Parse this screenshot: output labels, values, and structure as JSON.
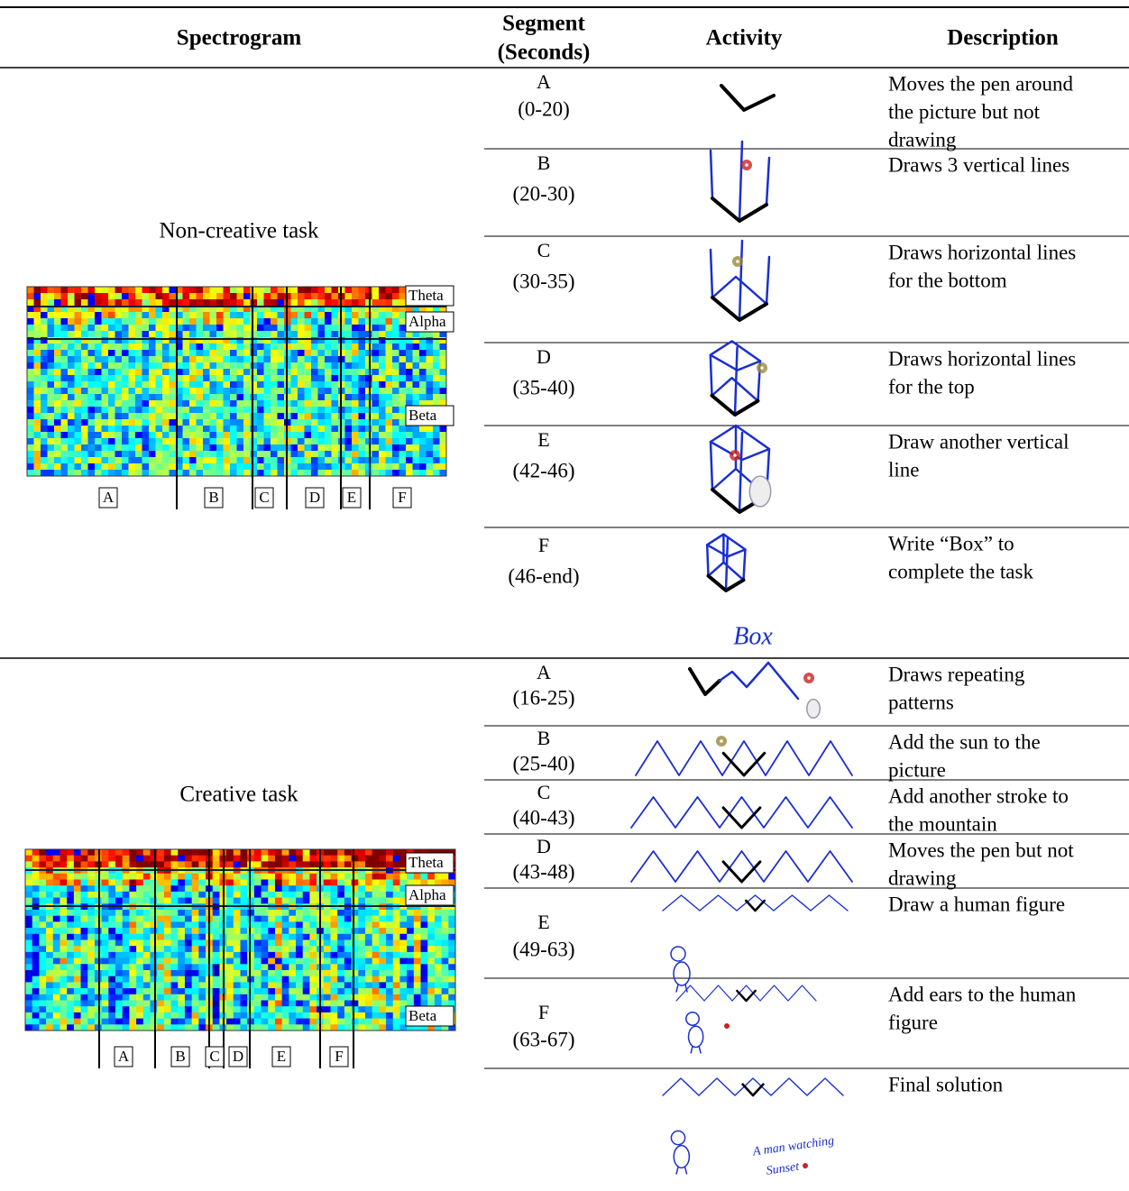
{
  "header": {
    "spectrogram": "Spectrogram",
    "segment": [
      "Segment",
      "(Seconds)"
    ],
    "activity": "Activity",
    "description": "Description"
  },
  "sections": [
    {
      "task": "Non-creative task",
      "bands": [
        "Theta",
        "Alpha",
        "Beta"
      ],
      "segments": [
        "A",
        "B",
        "C",
        "D",
        "E",
        "F"
      ],
      "rows": [
        {
          "segment": "A",
          "seconds": "(0-20)",
          "description": [
            "Moves the pen around",
            "the picture but not",
            "drawing"
          ]
        },
        {
          "segment": "B",
          "seconds": "(20-30)",
          "description": [
            "Draws 3 vertical lines"
          ]
        },
        {
          "segment": "C",
          "seconds": "(30-35)",
          "description": [
            "Draws horizontal lines",
            "for the bottom"
          ]
        },
        {
          "segment": "D",
          "seconds": "(35-40)",
          "description": [
            "Draws horizontal lines",
            "for the top"
          ]
        },
        {
          "segment": "E",
          "seconds": "(42-46)",
          "description": [
            "Draw another vertical",
            "line"
          ]
        },
        {
          "segment": "F",
          "seconds": "(46-end)",
          "description": [
            "Write “Box” to",
            "complete the task"
          ],
          "activity_text": [
            "Box"
          ]
        }
      ]
    },
    {
      "task": "Creative task",
      "bands": [
        "Theta",
        "Alpha",
        "Beta"
      ],
      "segments": [
        "A",
        "B",
        "C",
        "D",
        "E",
        "F"
      ],
      "rows": [
        {
          "segment": "A",
          "seconds": "(16-25)",
          "description": [
            "Draws repeating",
            "patterns"
          ]
        },
        {
          "segment": "B",
          "seconds": "(25-40)",
          "description": [
            "Add the sun to the",
            "picture"
          ]
        },
        {
          "segment": "C",
          "seconds": "(40-43)",
          "description": [
            "Add another stroke to",
            "the mountain"
          ]
        },
        {
          "segment": "D",
          "seconds": "(43-48)",
          "description": [
            "Moves the pen but not",
            "drawing"
          ]
        },
        {
          "segment": "E",
          "seconds": "(49-63)",
          "description": [
            "Draw a human figure"
          ]
        },
        {
          "segment": "F",
          "seconds": "(63-67)",
          "description": [
            "Add ears to the human",
            "figure"
          ]
        },
        {
          "description": [
            "Final solution"
          ],
          "activity_text": [
            "A man watching",
            "Sunset"
          ]
        }
      ]
    }
  ]
}
